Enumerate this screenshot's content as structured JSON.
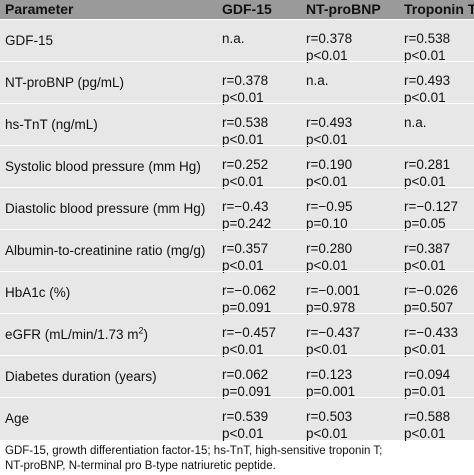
{
  "header": {
    "parameter": "Parameter",
    "gdf15": "GDF-15",
    "ntprobnp": "NT-proBNP",
    "troponin": "Troponin T"
  },
  "rows": [
    {
      "label": "GDF-15",
      "gdf": [
        "n.a.",
        ""
      ],
      "nt": [
        "r=0.378",
        "p<0.01"
      ],
      "tn": [
        "r=0.538",
        "p<0.01"
      ]
    },
    {
      "label": "NT-proBNP (pg/mL)",
      "gdf": [
        "r=0.378",
        "p<0.01"
      ],
      "nt": [
        "n.a.",
        ""
      ],
      "tn": [
        "r=0.493",
        "p<0.01"
      ]
    },
    {
      "label": "hs-TnT (ng/mL)",
      "gdf": [
        "r=0.538",
        "p<0.01"
      ],
      "nt": [
        "r=0.493",
        "p<0.01"
      ],
      "tn": [
        "n.a.",
        ""
      ]
    },
    {
      "label": "Systolic blood pressure (mm Hg)",
      "gdf": [
        "r=0.252",
        "p<0.01"
      ],
      "nt": [
        "r=0.190",
        "p<0.01"
      ],
      "tn": [
        "r=0.281",
        "p<0.01"
      ]
    },
    {
      "label": "Diastolic blood pressure (mm Hg)",
      "gdf": [
        "r=−0.43",
        "p=0.242"
      ],
      "nt": [
        "r=−0.95",
        "p=0.10"
      ],
      "tn": [
        "r=−0.127",
        "p=0.05"
      ]
    },
    {
      "label": "Albumin-to-creatinine ratio (mg/g)",
      "gdf": [
        "r=0.357",
        "p<0.01"
      ],
      "nt": [
        "r=0.280",
        "p<0.01"
      ],
      "tn": [
        "r=0.387",
        "p<0.01"
      ]
    },
    {
      "label": "HbA1c (%)",
      "gdf": [
        "r=−0.062",
        "p=0.091"
      ],
      "nt": [
        "r=−0.001",
        "p=0.978"
      ],
      "tn": [
        "r=−0.026",
        "p=0.507"
      ]
    },
    {
      "label": "eGFR (mL/min/1.73 m",
      "label_sup": "2",
      "label_end": ")",
      "gdf": [
        "r=−0.457",
        "p<0.01"
      ],
      "nt": [
        "r=−0.437",
        "p<0.01"
      ],
      "tn": [
        "r=−0.433",
        "p<0.01"
      ]
    },
    {
      "label": "Diabetes duration (years)",
      "gdf": [
        "r=0.062",
        "p=0.091"
      ],
      "nt": [
        "r=0.123",
        "p=0.001"
      ],
      "tn": [
        "r=0.094",
        "p=0.01"
      ]
    },
    {
      "label": "Age",
      "gdf": [
        "r=0.539",
        "p<0.01"
      ],
      "nt": [
        "r=0.503",
        "p<0.01"
      ],
      "tn": [
        "r=0.588",
        "p<0.01"
      ]
    }
  ],
  "footnote": {
    "line1": "GDF-15, growth differentiation factor-15; hs-TnT, high-sensitive troponin T;",
    "line2": "NT-proBNP, N-terminal pro B-type natriuretic peptide."
  }
}
